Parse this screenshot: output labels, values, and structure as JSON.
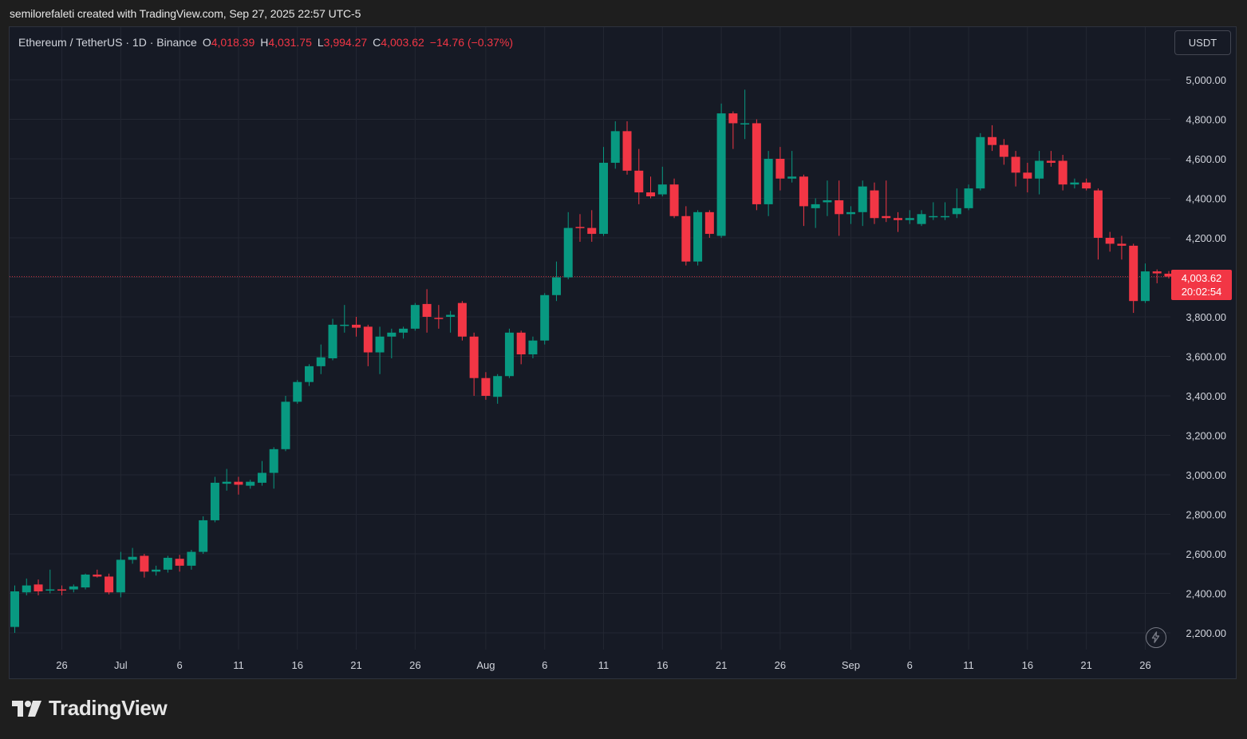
{
  "header": {
    "credit": "semilorefaleti created with TradingView.com, Sep 27, 2025 22:57 UTC-5"
  },
  "legend": {
    "symbol": "Ethereum / TetherUS · 1D · Binance",
    "open_label": "O",
    "open": "4,018.39",
    "high_label": "H",
    "high": "4,031.75",
    "low_label": "L",
    "low": "3,994.27",
    "close_label": "C",
    "close": "4,003.62",
    "change": "−14.76 (−0.37%)"
  },
  "controls": {
    "currency": "USDT"
  },
  "price_tag": {
    "price": "4,003.62",
    "countdown": "20:02:54"
  },
  "brand": {
    "name": "TradingView"
  },
  "colors": {
    "up": "#089981",
    "down": "#f23645",
    "background": "#161a25",
    "grid": "#232732",
    "text": "#d1d4dc"
  },
  "icons": {
    "live": "lightning-icon",
    "brand": "tradingview-logo-icon"
  },
  "chart_data": {
    "type": "candlestick",
    "symbol": "Ethereum / TetherUS",
    "interval": "1D",
    "exchange": "Binance",
    "ylim": [
      2100,
      5100
    ],
    "y_ticks": [
      "5,000.00",
      "4,800.00",
      "4,600.00",
      "4,400.00",
      "4,200.00",
      "4,000.00",
      "3,800.00",
      "3,600.00",
      "3,400.00",
      "3,200.00",
      "3,000.00",
      "2,800.00",
      "2,600.00",
      "2,400.00",
      "2,200.00"
    ],
    "y_tick_values": [
      5000,
      4800,
      4600,
      4400,
      4200,
      4000,
      3800,
      3600,
      3400,
      3200,
      3000,
      2800,
      2600,
      2400,
      2200
    ],
    "x_ticks": [
      {
        "label": "26",
        "date": "2025-06-26"
      },
      {
        "label": "Jul",
        "date": "2025-07-01"
      },
      {
        "label": "6",
        "date": "2025-07-06"
      },
      {
        "label": "11",
        "date": "2025-07-11"
      },
      {
        "label": "16",
        "date": "2025-07-16"
      },
      {
        "label": "21",
        "date": "2025-07-21"
      },
      {
        "label": "26",
        "date": "2025-07-26"
      },
      {
        "label": "Aug",
        "date": "2025-08-01"
      },
      {
        "label": "6",
        "date": "2025-08-06"
      },
      {
        "label": "11",
        "date": "2025-08-11"
      },
      {
        "label": "16",
        "date": "2025-08-16"
      },
      {
        "label": "21",
        "date": "2025-08-21"
      },
      {
        "label": "26",
        "date": "2025-08-26"
      },
      {
        "label": "Sep",
        "date": "2025-09-01"
      },
      {
        "label": "6",
        "date": "2025-09-06"
      },
      {
        "label": "11",
        "date": "2025-09-11"
      },
      {
        "label": "16",
        "date": "2025-09-16"
      },
      {
        "label": "21",
        "date": "2025-09-21"
      },
      {
        "label": "26",
        "date": "2025-09-26"
      }
    ],
    "last_price": 4003.62,
    "candles": [
      {
        "date": "2025-06-22",
        "o": 2230,
        "h": 2440,
        "l": 2200,
        "c": 2410
      },
      {
        "date": "2025-06-23",
        "o": 2405,
        "h": 2475,
        "l": 2390,
        "c": 2440
      },
      {
        "date": "2025-06-24",
        "o": 2445,
        "h": 2470,
        "l": 2390,
        "c": 2410
      },
      {
        "date": "2025-06-25",
        "o": 2415,
        "h": 2520,
        "l": 2400,
        "c": 2420
      },
      {
        "date": "2025-06-26",
        "o": 2420,
        "h": 2440,
        "l": 2390,
        "c": 2415
      },
      {
        "date": "2025-06-27",
        "o": 2420,
        "h": 2445,
        "l": 2405,
        "c": 2435
      },
      {
        "date": "2025-06-28",
        "o": 2430,
        "h": 2500,
        "l": 2420,
        "c": 2495
      },
      {
        "date": "2025-06-29",
        "o": 2495,
        "h": 2520,
        "l": 2480,
        "c": 2485
      },
      {
        "date": "2025-06-30",
        "o": 2485,
        "h": 2500,
        "l": 2395,
        "c": 2405
      },
      {
        "date": "2025-07-01",
        "o": 2405,
        "h": 2610,
        "l": 2380,
        "c": 2570
      },
      {
        "date": "2025-07-02",
        "o": 2570,
        "h": 2630,
        "l": 2550,
        "c": 2585
      },
      {
        "date": "2025-07-03",
        "o": 2590,
        "h": 2600,
        "l": 2480,
        "c": 2510
      },
      {
        "date": "2025-07-04",
        "o": 2510,
        "h": 2540,
        "l": 2490,
        "c": 2520
      },
      {
        "date": "2025-07-05",
        "o": 2520,
        "h": 2590,
        "l": 2505,
        "c": 2580
      },
      {
        "date": "2025-07-06",
        "o": 2575,
        "h": 2595,
        "l": 2510,
        "c": 2540
      },
      {
        "date": "2025-07-07",
        "o": 2540,
        "h": 2620,
        "l": 2520,
        "c": 2610
      },
      {
        "date": "2025-07-08",
        "o": 2610,
        "h": 2790,
        "l": 2600,
        "c": 2770
      },
      {
        "date": "2025-07-09",
        "o": 2770,
        "h": 2990,
        "l": 2760,
        "c": 2960
      },
      {
        "date": "2025-07-10",
        "o": 2955,
        "h": 3030,
        "l": 2920,
        "c": 2965
      },
      {
        "date": "2025-07-11",
        "o": 2965,
        "h": 2990,
        "l": 2900,
        "c": 2950
      },
      {
        "date": "2025-07-12",
        "o": 2945,
        "h": 2975,
        "l": 2930,
        "c": 2965
      },
      {
        "date": "2025-07-13",
        "o": 2960,
        "h": 3070,
        "l": 2945,
        "c": 3010
      },
      {
        "date": "2025-07-14",
        "o": 3010,
        "h": 3140,
        "l": 2930,
        "c": 3130
      },
      {
        "date": "2025-07-15",
        "o": 3130,
        "h": 3400,
        "l": 3120,
        "c": 3370
      },
      {
        "date": "2025-07-16",
        "o": 3370,
        "h": 3480,
        "l": 3360,
        "c": 3470
      },
      {
        "date": "2025-07-17",
        "o": 3470,
        "h": 3560,
        "l": 3450,
        "c": 3550
      },
      {
        "date": "2025-07-18",
        "o": 3550,
        "h": 3660,
        "l": 3510,
        "c": 3595
      },
      {
        "date": "2025-07-19",
        "o": 3590,
        "h": 3790,
        "l": 3580,
        "c": 3760
      },
      {
        "date": "2025-07-20",
        "o": 3760,
        "h": 3860,
        "l": 3720,
        "c": 3760
      },
      {
        "date": "2025-07-21",
        "o": 3760,
        "h": 3800,
        "l": 3700,
        "c": 3745
      },
      {
        "date": "2025-07-22",
        "o": 3750,
        "h": 3760,
        "l": 3550,
        "c": 3620
      },
      {
        "date": "2025-07-23",
        "o": 3620,
        "h": 3750,
        "l": 3510,
        "c": 3700
      },
      {
        "date": "2025-07-24",
        "o": 3700,
        "h": 3740,
        "l": 3590,
        "c": 3720
      },
      {
        "date": "2025-07-25",
        "o": 3720,
        "h": 3750,
        "l": 3690,
        "c": 3740
      },
      {
        "date": "2025-07-26",
        "o": 3740,
        "h": 3870,
        "l": 3730,
        "c": 3860
      },
      {
        "date": "2025-07-27",
        "o": 3865,
        "h": 3940,
        "l": 3720,
        "c": 3800
      },
      {
        "date": "2025-07-28",
        "o": 3795,
        "h": 3860,
        "l": 3740,
        "c": 3790
      },
      {
        "date": "2025-07-29",
        "o": 3800,
        "h": 3830,
        "l": 3720,
        "c": 3810
      },
      {
        "date": "2025-07-30",
        "o": 3870,
        "h": 3880,
        "l": 3680,
        "c": 3700
      },
      {
        "date": "2025-07-31",
        "o": 3700,
        "h": 3720,
        "l": 3400,
        "c": 3490
      },
      {
        "date": "2025-08-01",
        "o": 3490,
        "h": 3520,
        "l": 3380,
        "c": 3400
      },
      {
        "date": "2025-08-02",
        "o": 3395,
        "h": 3510,
        "l": 3360,
        "c": 3500
      },
      {
        "date": "2025-08-03",
        "o": 3500,
        "h": 3740,
        "l": 3490,
        "c": 3720
      },
      {
        "date": "2025-08-04",
        "o": 3720,
        "h": 3730,
        "l": 3560,
        "c": 3610
      },
      {
        "date": "2025-08-05",
        "o": 3610,
        "h": 3700,
        "l": 3590,
        "c": 3680
      },
      {
        "date": "2025-08-06",
        "o": 3680,
        "h": 3920,
        "l": 3660,
        "c": 3910
      },
      {
        "date": "2025-08-07",
        "o": 3910,
        "h": 4080,
        "l": 3880,
        "c": 4000
      },
      {
        "date": "2025-08-08",
        "o": 4000,
        "h": 4330,
        "l": 3990,
        "c": 4250
      },
      {
        "date": "2025-08-09",
        "o": 4255,
        "h": 4320,
        "l": 4180,
        "c": 4250
      },
      {
        "date": "2025-08-10",
        "o": 4250,
        "h": 4340,
        "l": 4180,
        "c": 4220
      },
      {
        "date": "2025-08-11",
        "o": 4220,
        "h": 4660,
        "l": 4210,
        "c": 4580
      },
      {
        "date": "2025-08-12",
        "o": 4580,
        "h": 4790,
        "l": 4550,
        "c": 4740
      },
      {
        "date": "2025-08-13",
        "o": 4740,
        "h": 4790,
        "l": 4520,
        "c": 4540
      },
      {
        "date": "2025-08-14",
        "o": 4540,
        "h": 4650,
        "l": 4370,
        "c": 4430
      },
      {
        "date": "2025-08-15",
        "o": 4430,
        "h": 4510,
        "l": 4400,
        "c": 4410
      },
      {
        "date": "2025-08-16",
        "o": 4420,
        "h": 4560,
        "l": 4410,
        "c": 4470
      },
      {
        "date": "2025-08-17",
        "o": 4470,
        "h": 4500,
        "l": 4300,
        "c": 4310
      },
      {
        "date": "2025-08-18",
        "o": 4310,
        "h": 4360,
        "l": 4060,
        "c": 4080
      },
      {
        "date": "2025-08-19",
        "o": 4080,
        "h": 4340,
        "l": 4060,
        "c": 4330
      },
      {
        "date": "2025-08-20",
        "o": 4330,
        "h": 4340,
        "l": 4200,
        "c": 4220
      },
      {
        "date": "2025-08-21",
        "o": 4210,
        "h": 4880,
        "l": 4200,
        "c": 4830
      },
      {
        "date": "2025-08-22",
        "o": 4830,
        "h": 4840,
        "l": 4650,
        "c": 4780
      },
      {
        "date": "2025-08-23",
        "o": 4780,
        "h": 4950,
        "l": 4700,
        "c": 4780
      },
      {
        "date": "2025-08-24",
        "o": 4780,
        "h": 4800,
        "l": 4340,
        "c": 4370
      },
      {
        "date": "2025-08-25",
        "o": 4370,
        "h": 4640,
        "l": 4310,
        "c": 4600
      },
      {
        "date": "2025-08-26",
        "o": 4600,
        "h": 4660,
        "l": 4440,
        "c": 4500
      },
      {
        "date": "2025-08-27",
        "o": 4500,
        "h": 4640,
        "l": 4480,
        "c": 4510
      },
      {
        "date": "2025-08-28",
        "o": 4510,
        "h": 4520,
        "l": 4260,
        "c": 4360
      },
      {
        "date": "2025-08-29",
        "o": 4350,
        "h": 4400,
        "l": 4250,
        "c": 4370
      },
      {
        "date": "2025-08-30",
        "o": 4380,
        "h": 4490,
        "l": 4310,
        "c": 4390
      },
      {
        "date": "2025-08-31",
        "o": 4390,
        "h": 4490,
        "l": 4210,
        "c": 4320
      },
      {
        "date": "2025-09-01",
        "o": 4320,
        "h": 4360,
        "l": 4270,
        "c": 4330
      },
      {
        "date": "2025-09-02",
        "o": 4330,
        "h": 4490,
        "l": 4260,
        "c": 4460
      },
      {
        "date": "2025-09-03",
        "o": 4440,
        "h": 4480,
        "l": 4270,
        "c": 4300
      },
      {
        "date": "2025-09-04",
        "o": 4310,
        "h": 4490,
        "l": 4280,
        "c": 4300
      },
      {
        "date": "2025-09-05",
        "o": 4300,
        "h": 4330,
        "l": 4230,
        "c": 4290
      },
      {
        "date": "2025-09-06",
        "o": 4290,
        "h": 4340,
        "l": 4270,
        "c": 4300
      },
      {
        "date": "2025-09-07",
        "o": 4270,
        "h": 4340,
        "l": 4260,
        "c": 4320
      },
      {
        "date": "2025-09-08",
        "o": 4310,
        "h": 4380,
        "l": 4290,
        "c": 4310
      },
      {
        "date": "2025-09-09",
        "o": 4310,
        "h": 4380,
        "l": 4290,
        "c": 4310
      },
      {
        "date": "2025-09-10",
        "o": 4320,
        "h": 4450,
        "l": 4300,
        "c": 4350
      },
      {
        "date": "2025-09-11",
        "o": 4350,
        "h": 4470,
        "l": 4340,
        "c": 4450
      },
      {
        "date": "2025-09-12",
        "o": 4450,
        "h": 4730,
        "l": 4440,
        "c": 4710
      },
      {
        "date": "2025-09-13",
        "o": 4710,
        "h": 4770,
        "l": 4640,
        "c": 4670
      },
      {
        "date": "2025-09-14",
        "o": 4670,
        "h": 4700,
        "l": 4570,
        "c": 4610
      },
      {
        "date": "2025-09-15",
        "o": 4610,
        "h": 4640,
        "l": 4460,
        "c": 4530
      },
      {
        "date": "2025-09-16",
        "o": 4530,
        "h": 4580,
        "l": 4430,
        "c": 4500
      },
      {
        "date": "2025-09-17",
        "o": 4500,
        "h": 4640,
        "l": 4420,
        "c": 4590
      },
      {
        "date": "2025-09-18",
        "o": 4590,
        "h": 4640,
        "l": 4560,
        "c": 4580
      },
      {
        "date": "2025-09-19",
        "o": 4590,
        "h": 4620,
        "l": 4440,
        "c": 4470
      },
      {
        "date": "2025-09-20",
        "o": 4470,
        "h": 4500,
        "l": 4450,
        "c": 4480
      },
      {
        "date": "2025-09-21",
        "o": 4480,
        "h": 4500,
        "l": 4440,
        "c": 4450
      },
      {
        "date": "2025-09-22",
        "o": 4440,
        "h": 4450,
        "l": 4090,
        "c": 4200
      },
      {
        "date": "2025-09-23",
        "o": 4200,
        "h": 4230,
        "l": 4130,
        "c": 4170
      },
      {
        "date": "2025-09-24",
        "o": 4170,
        "h": 4210,
        "l": 4090,
        "c": 4160
      },
      {
        "date": "2025-09-25",
        "o": 4160,
        "h": 4170,
        "l": 3820,
        "c": 3880
      },
      {
        "date": "2025-09-26",
        "o": 3880,
        "h": 4070,
        "l": 3870,
        "c": 4030
      },
      {
        "date": "2025-09-27",
        "o": 4030,
        "h": 4040,
        "l": 3970,
        "c": 4020
      },
      {
        "date": "2025-09-28",
        "o": 4018.39,
        "h": 4031.75,
        "l": 3994.27,
        "c": 4003.62
      }
    ]
  }
}
